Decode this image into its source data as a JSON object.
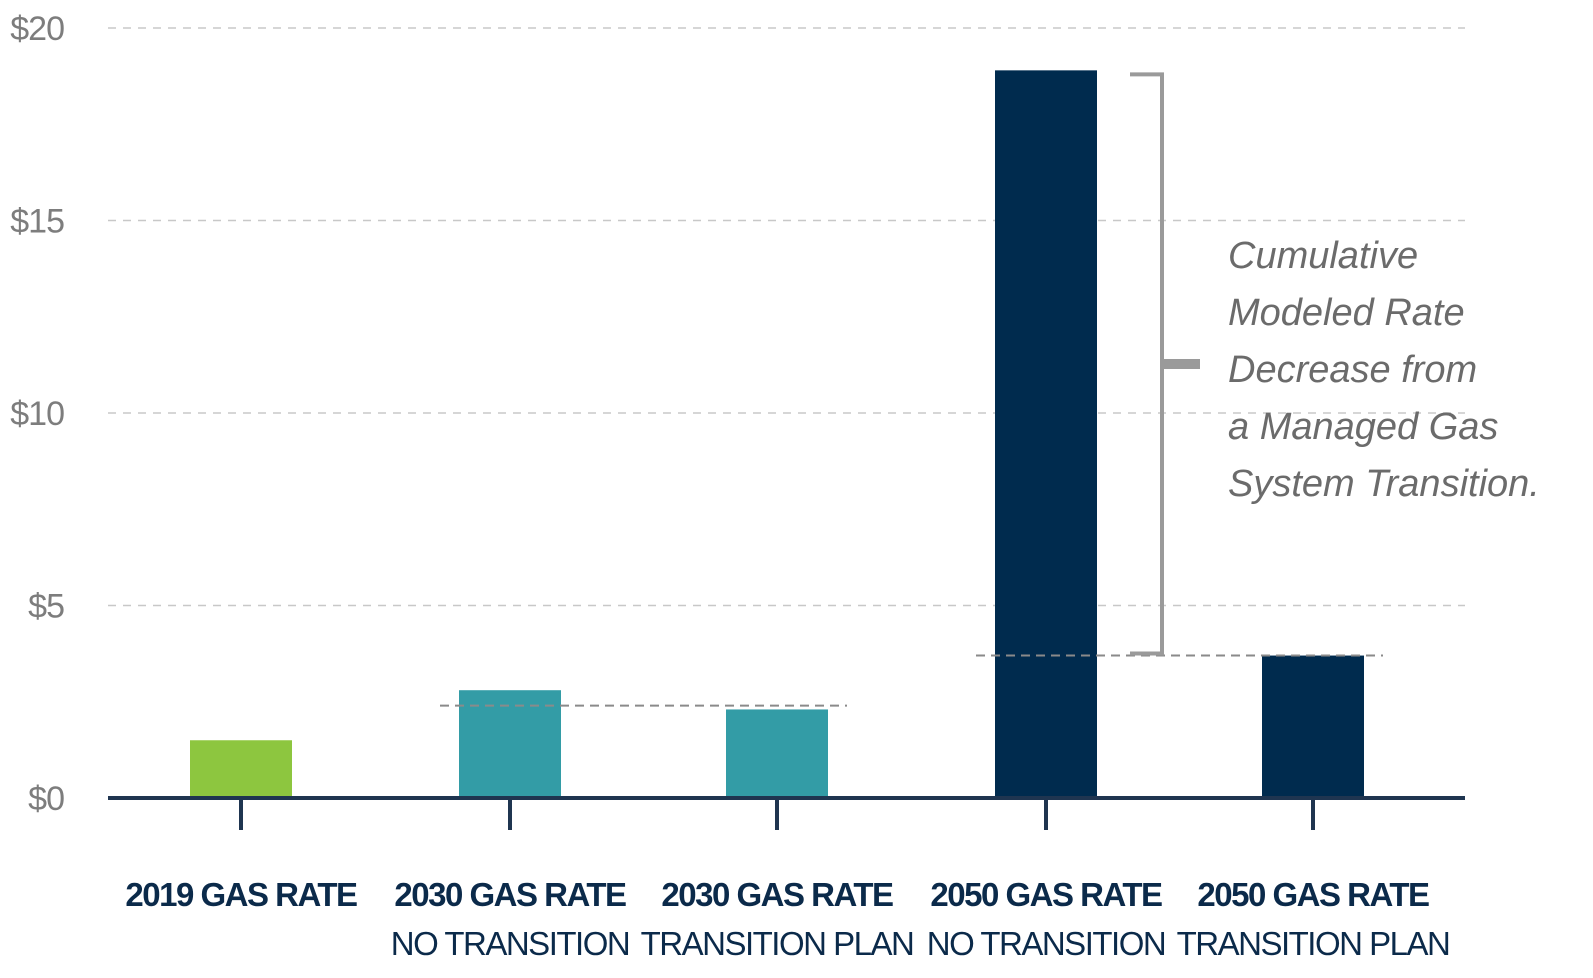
{
  "chart_data": {
    "type": "bar",
    "categories": [
      {
        "main": "2019 GAS RATE",
        "sub": ""
      },
      {
        "main": "2030 GAS RATE",
        "sub": "NO TRANSITION"
      },
      {
        "main": "2030 GAS RATE",
        "sub": "TRANSITION PLAN"
      },
      {
        "main": "2050 GAS RATE",
        "sub": "NO TRANSITION"
      },
      {
        "main": "2050 GAS RATE",
        "sub": "TRANSITION PLAN"
      }
    ],
    "values": [
      1.5,
      2.8,
      2.3,
      18.9,
      3.7
    ],
    "bar_colors": [
      "#8dc63f",
      "#339ca6",
      "#339ca6",
      "#002b4e",
      "#002b4e"
    ],
    "ylim": [
      0,
      20
    ],
    "yticks": [
      0,
      5,
      10,
      15,
      20
    ],
    "ytick_labels": [
      "$0",
      "$5",
      "$10",
      "$15",
      "$20"
    ],
    "grid": true,
    "reference_lines": [
      {
        "from_category": 1,
        "to_category": 2,
        "value": 2.4
      },
      {
        "from_category": 3,
        "to_category": 4,
        "value": 3.7
      }
    ],
    "bracket": {
      "category": 3,
      "from_value": 3.7,
      "to_value": 18.9
    },
    "annotation": [
      "Cumulative",
      "Modeled Rate",
      "Decrease from",
      "a Managed Gas",
      "System Transition."
    ],
    "colors": {
      "axis": "#1f3550",
      "grid": "#c8c8c8",
      "bracket": "#9a9a9a",
      "ticks": "#7d7d7d"
    },
    "title": "",
    "xlabel": "",
    "ylabel": ""
  }
}
